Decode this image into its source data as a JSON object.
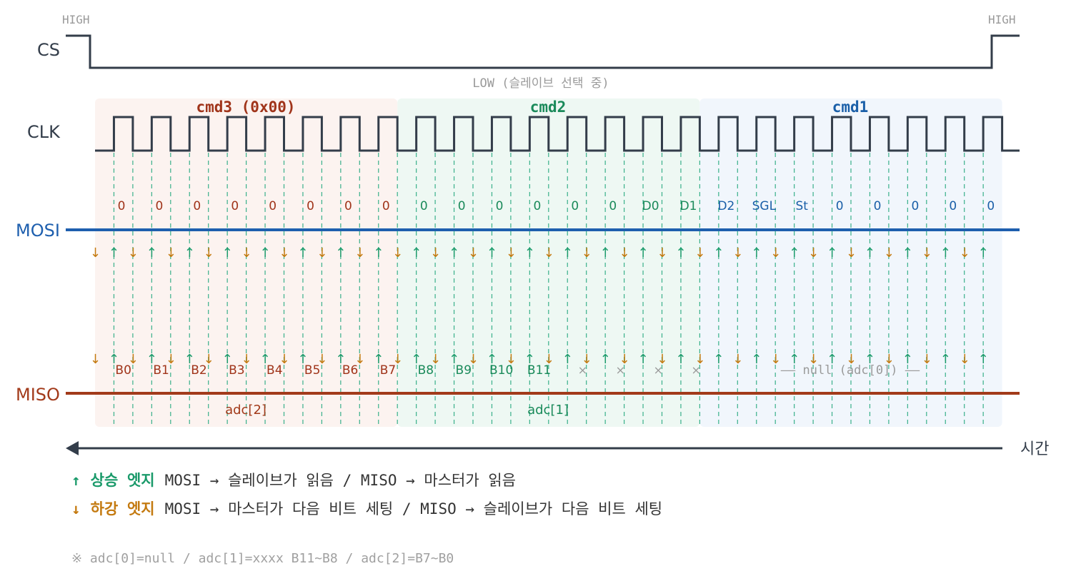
{
  "signals": {
    "cs": "CS",
    "clk": "CLK",
    "mosi": "MOSI",
    "miso": "MISO"
  },
  "cs_labels": {
    "high_left": "HIGH",
    "high_right": "HIGH",
    "low": "LOW (슬레이브 선택 중)"
  },
  "segments": [
    {
      "name": "cmd3 (0x00)",
      "miso_label": "adc[2]",
      "color": "#a0341a",
      "bg": "#fcf3f0"
    },
    {
      "name": "cmd2",
      "miso_label": "adc[1]",
      "color": "#1a8a5a",
      "bg": "#eef8f3"
    },
    {
      "name": "cmd1",
      "miso_label": "",
      "color": "#1a5fa8",
      "bg": "#f1f6fc"
    }
  ],
  "mosi_bits": [
    "0",
    "0",
    "0",
    "0",
    "0",
    "0",
    "0",
    "0",
    "0",
    "0",
    "0",
    "0",
    "0",
    "0",
    "D0",
    "D1",
    "D2",
    "SGL",
    "St",
    "0",
    "0",
    "0",
    "0",
    "0"
  ],
  "miso_bits": [
    "B0",
    "B1",
    "B2",
    "B3",
    "B4",
    "B5",
    "B6",
    "B7",
    "B8",
    "B9",
    "B10",
    "B11",
    "×",
    "×",
    "×",
    "×"
  ],
  "miso_null": "—— null (adc[0]) ——",
  "time_label": "시간",
  "legend": {
    "rise_arrow": "↑",
    "rise_title": "상승 엣지",
    "rise_desc": "MOSI → 슬레이브가 읽음 / MISO → 마스터가 읽음",
    "fall_arrow": "↓",
    "fall_title": "하강 엣지",
    "fall_desc": "MOSI → 마스터가 다음 비트 세팅 / MISO → 슬레이브가 다음 비트 세팅"
  },
  "note": "※ adc[0]=null / adc[1]=xxxx B11~B8 / adc[2]=B7~B0",
  "colors": {
    "line": "#333d4a",
    "mosi": "#1e5fae",
    "miso": "#a23a1a",
    "rise": "#1a9a6a",
    "fall": "#c47a10",
    "grid": "#39b08a",
    "muted": "#9a9a9a"
  }
}
